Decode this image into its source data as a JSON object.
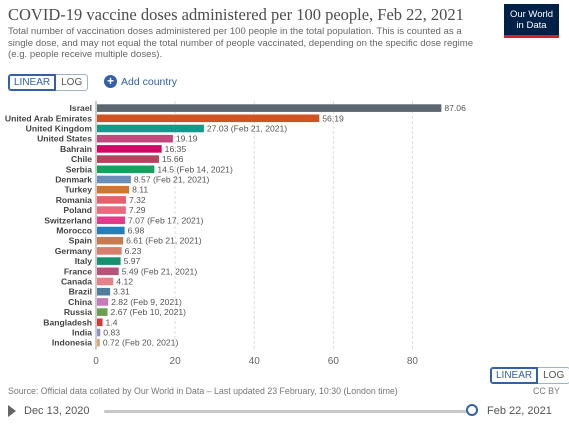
{
  "header": {
    "title": "COVID-19 vaccine doses administered per 100 people, Feb 22, 2021",
    "subtitle": "Total number of vaccination doses administered per 100 people in the total population. This is counted as a single dose, and may not equal the total number of people vaccinated, depending on the specific dose regime (e.g. people receive multiple doses).",
    "logo_line1": "Our World",
    "logo_line2": "in Data"
  },
  "controls": {
    "linear_label": "LINEAR",
    "log_label": "LOG",
    "add_country_label": "Add country"
  },
  "chart_data": {
    "type": "bar",
    "orientation": "horizontal",
    "xlim": [
      0,
      90
    ],
    "x_ticks": [
      0,
      20,
      40,
      60,
      80
    ],
    "grid": true,
    "categories": [
      "Israel",
      "United Arab Emirates",
      "United Kingdom",
      "United States",
      "Bahrain",
      "Chile",
      "Serbia",
      "Denmark",
      "Turkey",
      "Romania",
      "Poland",
      "Switzerland",
      "Morocco",
      "Spain",
      "Germany",
      "Italy",
      "France",
      "Canada",
      "Brazil",
      "China",
      "Russia",
      "Bangladesh",
      "India",
      "Indonesia"
    ],
    "values": [
      87.06,
      56.19,
      27.03,
      19.19,
      16.35,
      15.66,
      14.5,
      8.57,
      8.11,
      7.32,
      7.29,
      7.07,
      6.98,
      6.61,
      6.23,
      5.97,
      5.49,
      4.12,
      3.31,
      2.82,
      2.67,
      1.4,
      0.83,
      0.72
    ],
    "value_labels": [
      "87.06",
      "56.19",
      "27.03 (Feb 21, 2021)",
      "19.19",
      "16.35",
      "15.66",
      "14.5 (Feb 14, 2021)",
      "8.57 (Feb 21, 2021)",
      "8.11",
      "7.32",
      "7.29",
      "7.07 (Feb 17, 2021)",
      "6.98",
      "6.61 (Feb 21, 2021)",
      "6.23",
      "5.97",
      "5.49 (Feb 21, 2021)",
      "4.12",
      "3.31",
      "2.82 (Feb 9, 2021)",
      "2.67 (Feb 10, 2021)",
      "1.4",
      "0.83",
      "0.72 (Feb 20, 2021)"
    ],
    "colors": [
      "#5b6670",
      "#d1531f",
      "#139a8e",
      "#c2497d",
      "#cf0a66",
      "#b2445d",
      "#18a05f",
      "#6b8fb8",
      "#d4752e",
      "#e5616c",
      "#e96c7e",
      "#e13b8a",
      "#1f7fbf",
      "#c57c4f",
      "#d77f6c",
      "#16906e",
      "#b55378",
      "#e4828a",
      "#4f7d9b",
      "#c67ab8",
      "#6a9f4f",
      "#d43737",
      "#8d93c2",
      "#d8a76f"
    ]
  },
  "footer": {
    "source": "Source: Official data collated by Our World in Data – Last updated 23 February, 10:30 (London time)",
    "cc_label": "CC BY",
    "linear_label": "LINEAR",
    "log_label": "LOG"
  },
  "timeline": {
    "start_date": "Dec 13, 2020",
    "end_date": "Feb 22, 2021"
  }
}
